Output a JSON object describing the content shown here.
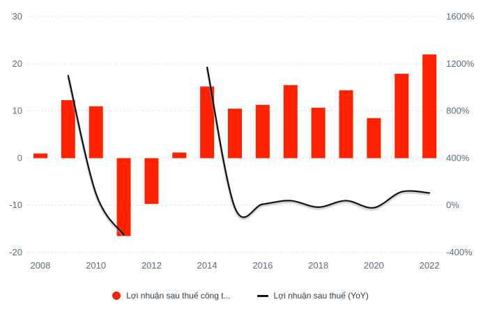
{
  "chart_data": {
    "type": "bar+line",
    "categories": [
      "2008",
      "2009",
      "2010",
      "2011",
      "2012",
      "2013",
      "2014",
      "2015",
      "2016",
      "2017",
      "2018",
      "2019",
      "2020",
      "2021",
      "2022"
    ],
    "x_tick_labels": [
      "2008",
      "2010",
      "2012",
      "2014",
      "2016",
      "2018",
      "2020",
      "2022"
    ],
    "left_axis": {
      "ylim": [
        -20,
        30
      ],
      "ticks": [
        "30",
        "20",
        "10",
        "0",
        "-10",
        "-20"
      ],
      "tick_values": [
        30,
        20,
        10,
        0,
        -10,
        -20
      ]
    },
    "right_axis": {
      "ylim": [
        -400,
        1600
      ],
      "ticks": [
        "1600%",
        "1200%",
        "800%",
        "400%",
        "0%",
        "-400%"
      ],
      "tick_values": [
        1600,
        1200,
        800,
        400,
        0,
        -400
      ]
    },
    "series": [
      {
        "name": "Lợi nhuận sau thuế công t...",
        "type": "bar",
        "axis": "left",
        "color": "#ff2200",
        "values": [
          1.0,
          12.3,
          11.0,
          -16.5,
          -9.7,
          1.2,
          15.2,
          10.5,
          11.3,
          15.5,
          10.7,
          14.4,
          8.5,
          17.9,
          22.0
        ]
      },
      {
        "name": "Lợi nhuận sau thuế (YoY)",
        "type": "line",
        "axis": "right",
        "color": "#111111",
        "segments": [
          {
            "x": [
              "2009",
              "2010",
              "2011"
            ],
            "y": [
              1100,
              100,
              -250
            ]
          },
          {
            "x": [
              "2014",
              "2015",
              "2016",
              "2017",
              "2018",
              "2019",
              "2020",
              "2021",
              "2022"
            ],
            "y": [
              1170,
              -20,
              10,
              40,
              -15,
              40,
              -20,
              115,
              105
            ]
          }
        ]
      }
    ],
    "legend_position": "bottom",
    "grid": "horizontal-dotted"
  },
  "legend": {
    "bar_label": "Lợi nhuận sau thuế công t...",
    "line_label": "Lợi nhuận sau thuế (YoY)"
  }
}
